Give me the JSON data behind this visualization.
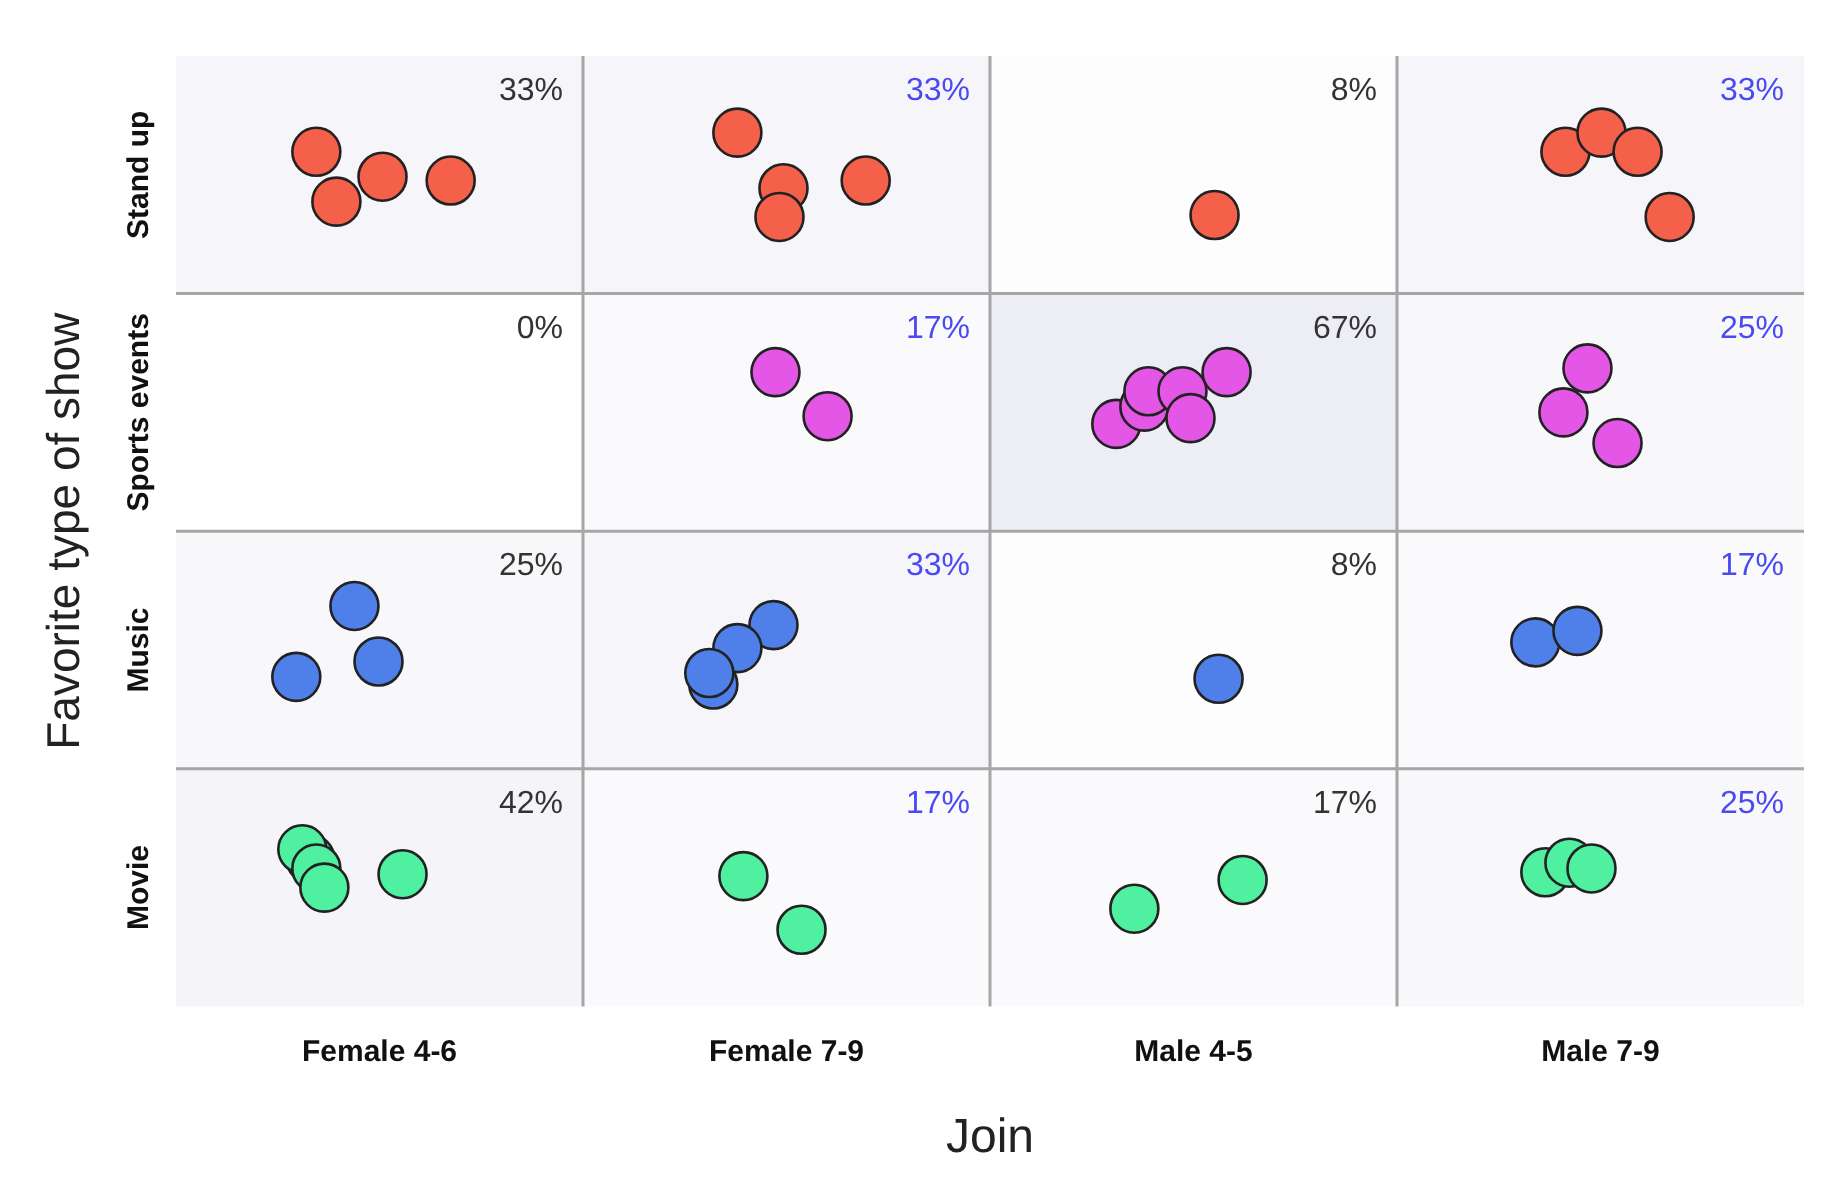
{
  "chart_data": {
    "type": "heatmap",
    "xlabel": "Join",
    "ylabel": "Favorite type of show",
    "categories": [
      "Female 4-6",
      "Female 7-9",
      "Male 4-5",
      "Male 7-9"
    ],
    "y_categories": [
      "Stand up",
      "Sports events",
      "Music",
      "Movie"
    ],
    "cells": [
      [
        33,
        33,
        8,
        33
      ],
      [
        0,
        17,
        67,
        25
      ],
      [
        25,
        33,
        8,
        17
      ],
      [
        42,
        17,
        17,
        25
      ]
    ],
    "cell_labels": [
      [
        "33%",
        "33%",
        "8%",
        "33%"
      ],
      [
        "0%",
        "17%",
        "67%",
        "25%"
      ],
      [
        "25%",
        "33%",
        "8%",
        "17%"
      ],
      [
        "42%",
        "17%",
        "17%",
        "25%"
      ]
    ],
    "grid": true
  }
}
